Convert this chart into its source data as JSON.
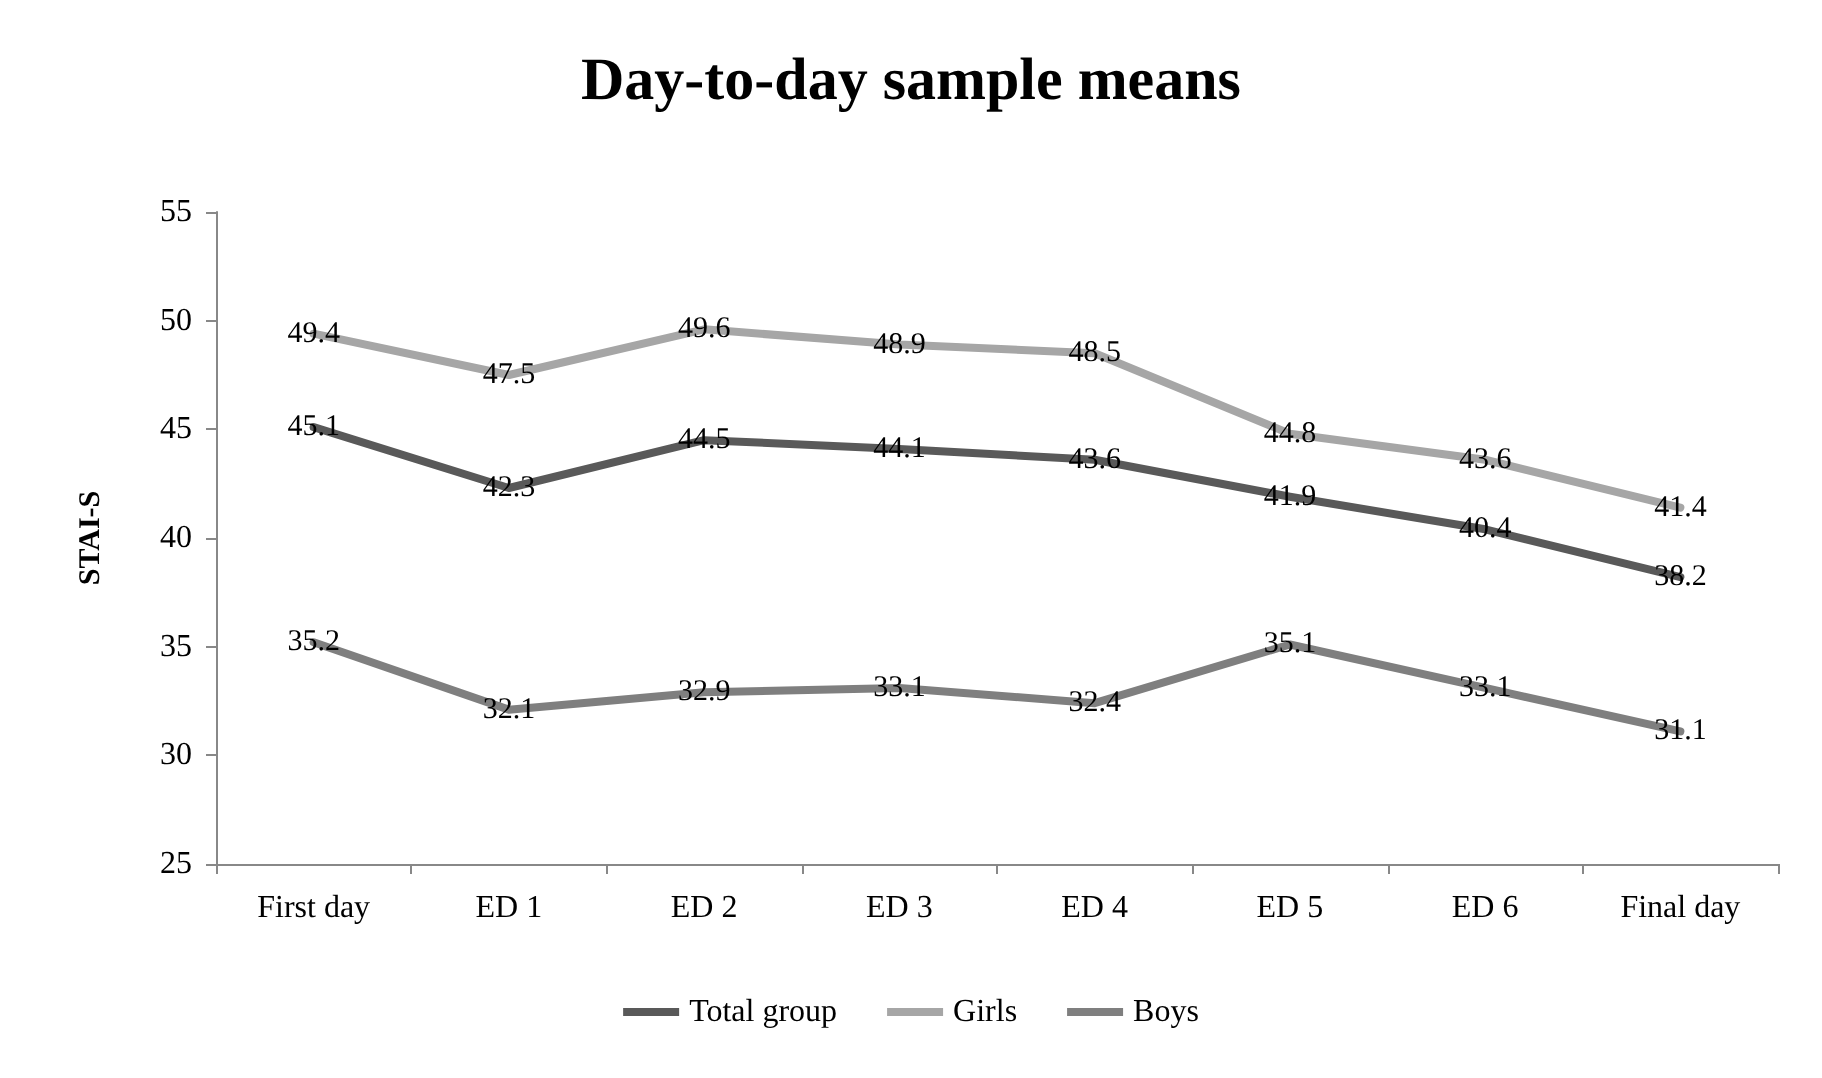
{
  "chart_data": {
    "type": "line",
    "title": "Day-to-day sample means",
    "ylabel": "STAI-S",
    "categories": [
      "First day",
      "ED 1",
      "ED 2",
      "ED 3",
      "ED 4",
      "ED 5",
      "ED 6",
      "Final day"
    ],
    "series": [
      {
        "name": "Total group",
        "color": "#595959",
        "values": [
          45.1,
          42.3,
          44.5,
          44.1,
          43.6,
          41.9,
          40.4,
          38.2
        ]
      },
      {
        "name": "Girls",
        "color": "#a6a6a6",
        "values": [
          49.4,
          47.5,
          49.6,
          48.9,
          48.5,
          44.8,
          43.6,
          41.4
        ]
      },
      {
        "name": "Boys",
        "color": "#7f7f7f",
        "values": [
          35.2,
          32.1,
          32.9,
          33.1,
          32.4,
          35.1,
          33.1,
          31.1
        ]
      }
    ],
    "ylim": [
      25,
      55
    ],
    "yticks": [
      25,
      30,
      35,
      40,
      45,
      50,
      55
    ],
    "grid": false,
    "legend": "bottom",
    "data_labels": true,
    "marker": "none",
    "line_style": "solid"
  }
}
